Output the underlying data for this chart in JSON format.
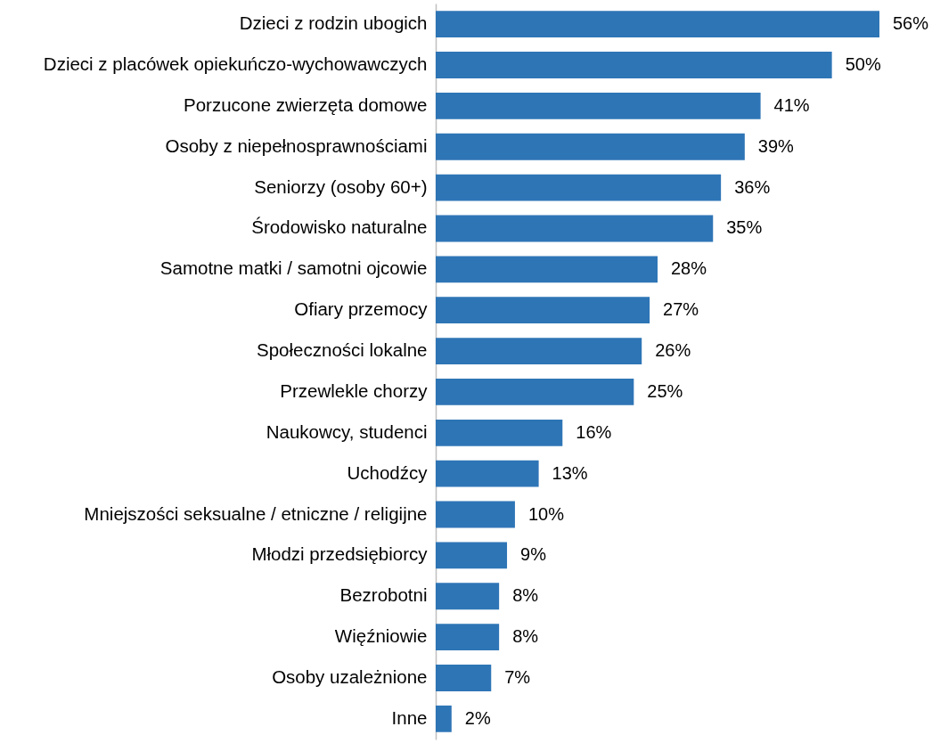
{
  "chart_data": {
    "type": "bar",
    "orientation": "horizontal",
    "color": "#2e75b6",
    "categories": [
      "Dzieci z rodzin ubogich",
      "Dzieci z placówek opiekuńczo-wychowawczych",
      "Porzucone zwierzęta domowe",
      "Osoby z niepełnosprawnościami",
      "Seniorzy (osoby 60+)",
      "Środowisko naturalne",
      "Samotne matki / samotni ojcowie",
      "Ofiary przemocy",
      "Społeczności lokalne",
      "Przewlekle chorzy",
      "Naukowcy, studenci",
      "Uchodźcy",
      "Mniejszości seksualne / etniczne / religijne",
      "Młodzi przedsiębiorcy",
      "Bezrobotni",
      "Więźniowie",
      "Osoby uzależnione",
      "Inne"
    ],
    "values": [
      56,
      50,
      41,
      39,
      36,
      35,
      28,
      27,
      26,
      25,
      16,
      13,
      10,
      9,
      8,
      8,
      7,
      2
    ],
    "value_labels": [
      "56%",
      "50%",
      "41%",
      "39%",
      "36%",
      "35%",
      "28%",
      "27%",
      "26%",
      "25%",
      "16%",
      "13%",
      "10%",
      "9%",
      "8%",
      "8%",
      "7%",
      "2%"
    ],
    "tick_labels": "y"
  }
}
